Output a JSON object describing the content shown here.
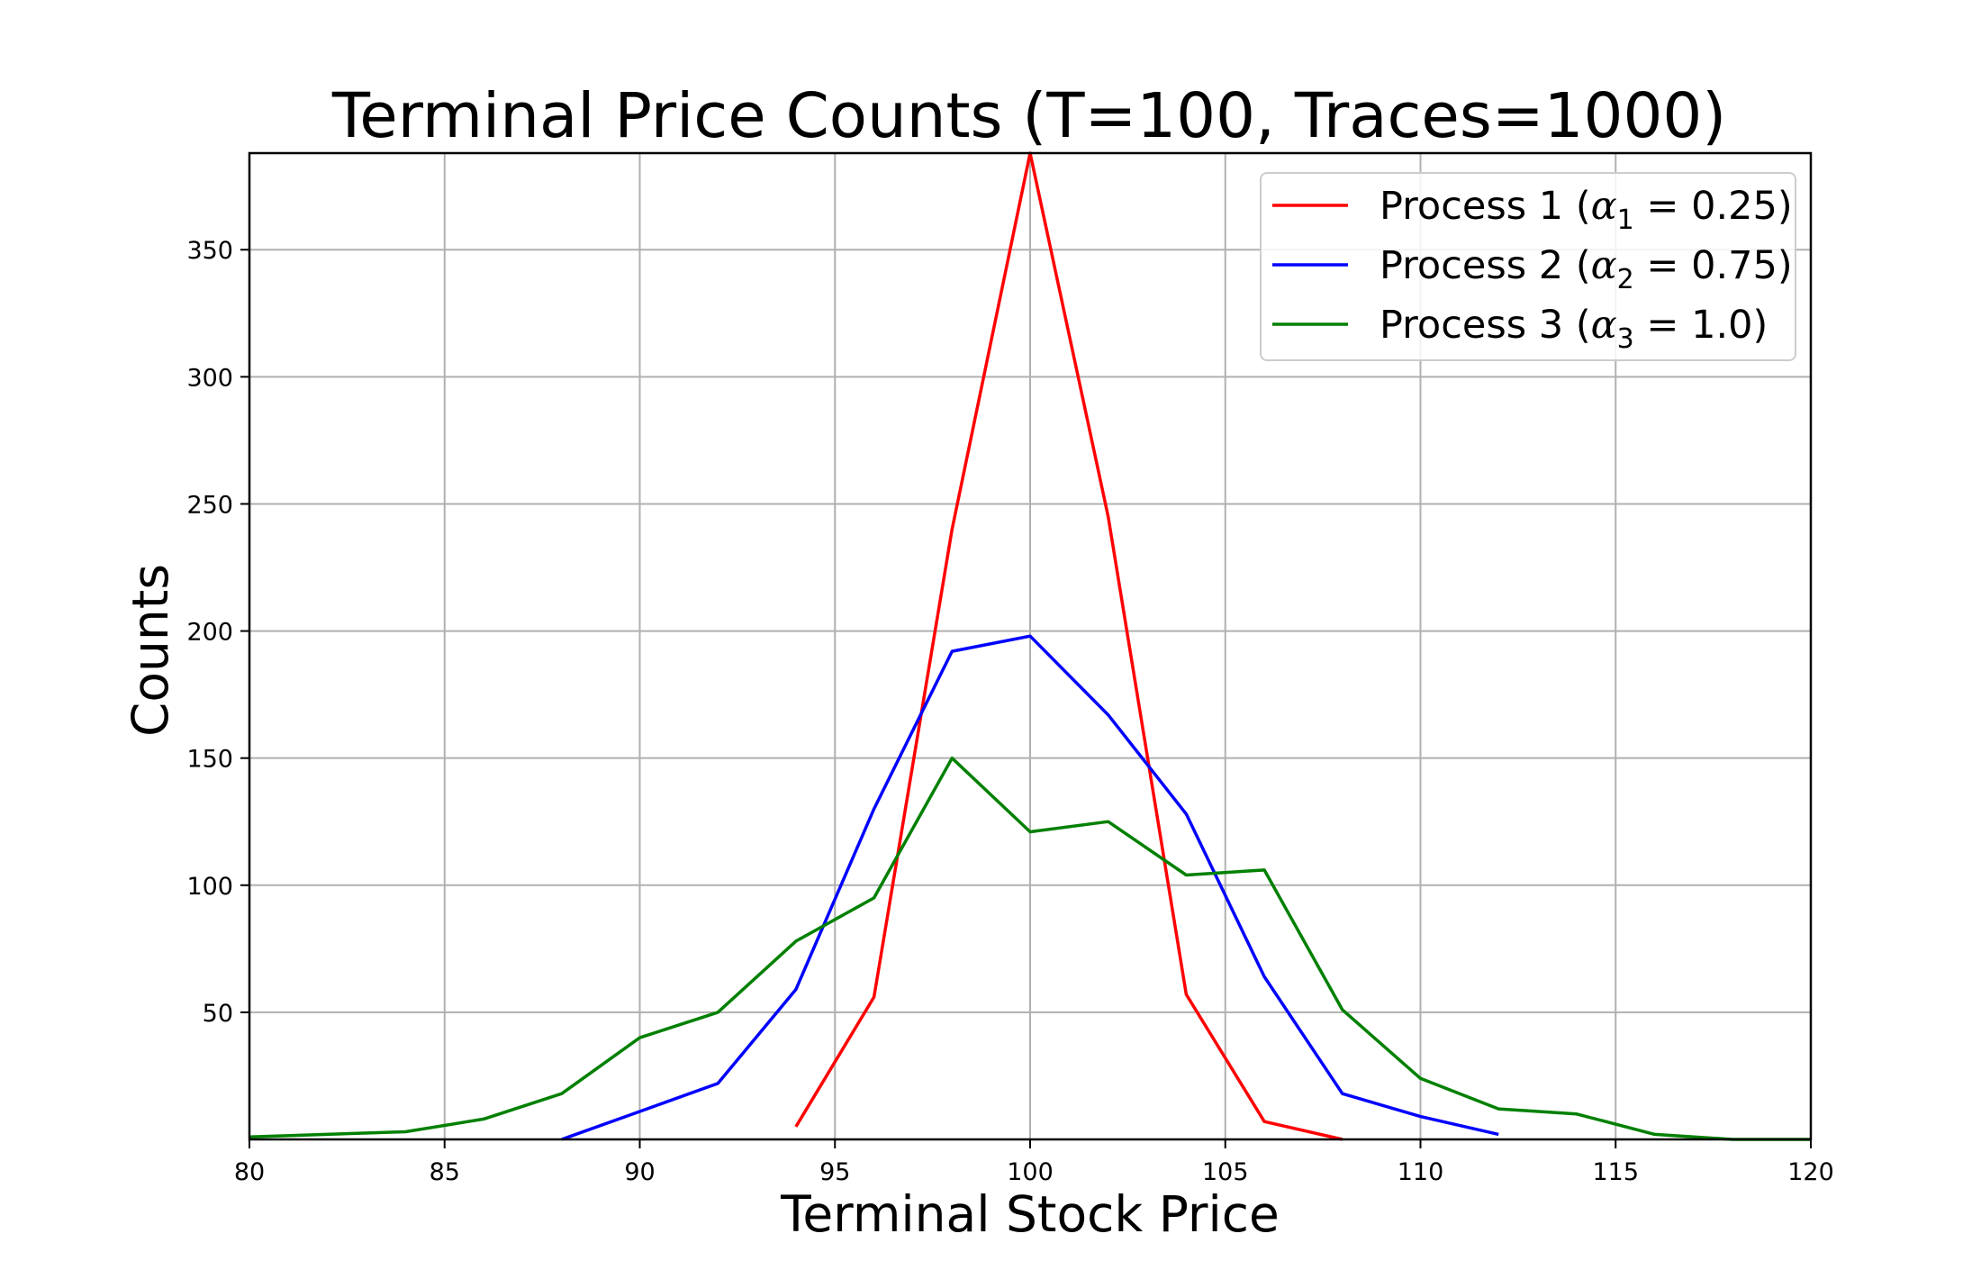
{
  "chart_data": {
    "type": "line",
    "title": "Terminal Price Counts (T=100, Traces=1000)",
    "xlabel": "Terminal Stock Price",
    "ylabel": "Counts",
    "xlim": [
      80,
      120
    ],
    "ylim": [
      0,
      388
    ],
    "xticks": [
      80,
      85,
      90,
      95,
      100,
      105,
      110,
      115,
      120
    ],
    "yticks": [
      50,
      100,
      150,
      200,
      250,
      300,
      350
    ],
    "grid": true,
    "legend_position": "top-right",
    "series": [
      {
        "name": "Process 1",
        "legend": {
          "prefix": "Process 1 (",
          "symbol": "α",
          "subscript": "1",
          "suffix": " = 0.25)"
        },
        "color": "#ff0000",
        "x": [
          94,
          96,
          98,
          100,
          102,
          104,
          106,
          108
        ],
        "y": [
          5,
          56,
          240,
          388,
          245,
          57,
          7,
          0
        ]
      },
      {
        "name": "Process 2",
        "legend": {
          "prefix": "Process 2 (",
          "symbol": "α",
          "subscript": "2",
          "suffix": " = 0.75)"
        },
        "color": "#0000ff",
        "x": [
          88,
          90,
          92,
          94,
          96,
          98,
          100,
          102,
          104,
          106,
          108,
          110,
          112
        ],
        "y": [
          0,
          11,
          22,
          59,
          130,
          192,
          198,
          167,
          128,
          64,
          18,
          9,
          2
        ]
      },
      {
        "name": "Process 3",
        "legend": {
          "prefix": "Process 3 (",
          "symbol": "α",
          "subscript": "3",
          "suffix": " = 1.0)"
        },
        "color": "#008000",
        "x": [
          80,
          84,
          86,
          88,
          90,
          92,
          94,
          96,
          98,
          100,
          102,
          104,
          106,
          108,
          110,
          112,
          114,
          116,
          118,
          120
        ],
        "y": [
          1,
          3,
          8,
          18,
          40,
          50,
          78,
          95,
          150,
          121,
          125,
          104,
          106,
          51,
          24,
          12,
          10,
          2,
          0,
          0
        ]
      }
    ]
  }
}
